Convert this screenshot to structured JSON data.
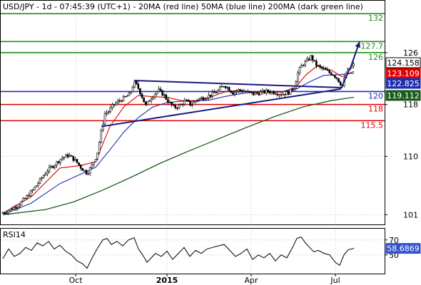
{
  "header": {
    "title": "USD/JPY - 1d - 07:45:39 (UTC+1) - 20MA (red line) 50MA (blue line) 200MA (dark green line)"
  },
  "colors": {
    "background": "#ffffff",
    "grid": "#c8c8c8",
    "candle": "#000000",
    "ma20": "#e00000",
    "ma50": "#1f2fb0",
    "ma200": "#1a5c1a",
    "level_green": "#1f8f1f",
    "level_red": "#e00000",
    "level_blue": "#1f2fb0",
    "trendline": "#1a1a80",
    "price_last": "#000000",
    "rsi_line": "#000000",
    "rsi_badge": "#3355cc"
  },
  "chart_data": [
    {
      "type": "candlestick",
      "title": "USD/JPY - 1d - 07:45:39 (UTC+1) - 20MA (red line) 50MA (blue line) 200MA (dark green line)",
      "y_ticks": [
        101,
        110,
        118,
        126
      ],
      "ylim": [
        99.5,
        134
      ],
      "x_ticks": [
        "Oct",
        "2015",
        "Apr",
        "Jul"
      ],
      "levels": [
        {
          "value": 132,
          "label": "132",
          "color": "green"
        },
        {
          "value": 127.7,
          "label": "127.7",
          "color": "green"
        },
        {
          "value": 126,
          "label": "126",
          "color": "green"
        },
        {
          "value": 120,
          "label": "120",
          "color": "blue"
        },
        {
          "value": 118,
          "label": "118",
          "color": "red"
        },
        {
          "value": 115.5,
          "label": "115.5",
          "color": "red"
        }
      ],
      "price_badges": [
        {
          "value": 124.158,
          "label": "124.158",
          "kind": "last"
        },
        {
          "value": 123.109,
          "label": "123.109",
          "kind": "ma20"
        },
        {
          "value": 122.825,
          "label": "122.825",
          "kind": "ma50"
        },
        {
          "value": 119.112,
          "label": "119.112",
          "kind": "ma200"
        }
      ],
      "close_points": [
        [
          0,
          101.3
        ],
        [
          12,
          101.9
        ],
        [
          22,
          102.5
        ],
        [
          32,
          103.6
        ],
        [
          42,
          104.8
        ],
        [
          52,
          106.3
        ],
        [
          62,
          107.8
        ],
        [
          72,
          108.7
        ],
        [
          82,
          109.7
        ],
        [
          92,
          110.2
        ],
        [
          102,
          109.3
        ],
        [
          110,
          108.2
        ],
        [
          118,
          107.4
        ],
        [
          124,
          108.4
        ],
        [
          132,
          110.3
        ],
        [
          138,
          113.9
        ],
        [
          143,
          116.6
        ],
        [
          148,
          116.9
        ],
        [
          154,
          117.8
        ],
        [
          162,
          118.5
        ],
        [
          170,
          119.0
        ],
        [
          178,
          119.6
        ],
        [
          184,
          121.4
        ],
        [
          189,
          120.7
        ],
        [
          194,
          119.5
        ],
        [
          200,
          117.8
        ],
        [
          206,
          118.8
        ],
        [
          212,
          119.6
        ],
        [
          218,
          120.2
        ],
        [
          226,
          119.4
        ],
        [
          232,
          118.4
        ],
        [
          240,
          117.5
        ],
        [
          248,
          117.8
        ],
        [
          256,
          118.6
        ],
        [
          264,
          117.9
        ],
        [
          272,
          118.8
        ],
        [
          280,
          119.0
        ],
        [
          290,
          119.4
        ],
        [
          300,
          120.0
        ],
        [
          310,
          121.0
        ],
        [
          316,
          120.5
        ],
        [
          322,
          119.8
        ],
        [
          330,
          120.2
        ],
        [
          340,
          120.0
        ],
        [
          350,
          119.6
        ],
        [
          360,
          119.8
        ],
        [
          370,
          120.0
        ],
        [
          380,
          119.9
        ],
        [
          390,
          119.6
        ],
        [
          400,
          119.8
        ],
        [
          408,
          120.6
        ],
        [
          414,
          123.1
        ],
        [
          420,
          124.2
        ],
        [
          426,
          124.7
        ],
        [
          432,
          125.4
        ],
        [
          438,
          124.2
        ],
        [
          444,
          123.7
        ],
        [
          450,
          123.4
        ],
        [
          456,
          123.0
        ],
        [
          462,
          122.7
        ],
        [
          468,
          122.1
        ],
        [
          472,
          121.4
        ],
        [
          476,
          120.8
        ],
        [
          480,
          122.6
        ],
        [
          486,
          123.6
        ],
        [
          492,
          124.158
        ]
      ],
      "ma20_points": [
        [
          0,
          101.2
        ],
        [
          40,
          103.8
        ],
        [
          80,
          108.2
        ],
        [
          110,
          108.6
        ],
        [
          130,
          109.2
        ],
        [
          150,
          114.6
        ],
        [
          170,
          117.7
        ],
        [
          190,
          119.4
        ],
        [
          210,
          119.2
        ],
        [
          230,
          119.1
        ],
        [
          250,
          118.6
        ],
        [
          270,
          118.6
        ],
        [
          290,
          119.1
        ],
        [
          310,
          119.9
        ],
        [
          330,
          120.2
        ],
        [
          350,
          119.9
        ],
        [
          370,
          119.9
        ],
        [
          390,
          119.9
        ],
        [
          410,
          120.6
        ],
        [
          425,
          122.6
        ],
        [
          440,
          123.9
        ],
        [
          460,
          123.3
        ],
        [
          475,
          122.3
        ],
        [
          492,
          123.109
        ]
      ],
      "ma50_points": [
        [
          0,
          101.0
        ],
        [
          40,
          102.8
        ],
        [
          80,
          105.8
        ],
        [
          110,
          107.3
        ],
        [
          130,
          108.3
        ],
        [
          150,
          111.0
        ],
        [
          170,
          113.8
        ],
        [
          190,
          116.0
        ],
        [
          210,
          117.6
        ],
        [
          230,
          118.3
        ],
        [
          250,
          118.5
        ],
        [
          270,
          118.5
        ],
        [
          290,
          118.7
        ],
        [
          310,
          119.2
        ],
        [
          330,
          119.6
        ],
        [
          350,
          119.9
        ],
        [
          370,
          120.0
        ],
        [
          390,
          120.0
        ],
        [
          410,
          120.3
        ],
        [
          430,
          121.5
        ],
        [
          450,
          122.5
        ],
        [
          470,
          122.6
        ],
        [
          492,
          122.825
        ]
      ],
      "ma200_points": [
        [
          0,
          101.0
        ],
        [
          60,
          101.8
        ],
        [
          100,
          103.0
        ],
        [
          140,
          104.8
        ],
        [
          180,
          106.8
        ],
        [
          220,
          108.9
        ],
        [
          260,
          110.8
        ],
        [
          300,
          112.6
        ],
        [
          340,
          114.4
        ],
        [
          380,
          116.1
        ],
        [
          420,
          117.6
        ],
        [
          460,
          118.6
        ],
        [
          492,
          119.112
        ]
      ],
      "trendlines": [
        {
          "from": [
            138,
            114.6
          ],
          "to": [
            474,
            120.4
          ]
        },
        {
          "from": [
            184,
            121.7
          ],
          "to": [
            474,
            120.6
          ]
        },
        {
          "from": [
            474,
            120.5
          ],
          "to": [
            486,
            123.5
          ]
        }
      ],
      "projection_arrow": {
        "from": [
          486,
          123.3
        ],
        "to": [
          500,
          127.7
        ]
      }
    },
    {
      "type": "line",
      "title": "RSI14",
      "y_ticks": [
        50,
        70
      ],
      "ylim": [
        25,
        85
      ],
      "last_value": 58.6869,
      "last_label": "58.6869",
      "points": [
        [
          0,
          45
        ],
        [
          8,
          58
        ],
        [
          16,
          48
        ],
        [
          24,
          52
        ],
        [
          32,
          60
        ],
        [
          40,
          56
        ],
        [
          48,
          66
        ],
        [
          56,
          62
        ],
        [
          64,
          68
        ],
        [
          72,
          58
        ],
        [
          80,
          63
        ],
        [
          88,
          55
        ],
        [
          96,
          50
        ],
        [
          104,
          42
        ],
        [
          112,
          38
        ],
        [
          118,
          32
        ],
        [
          124,
          44
        ],
        [
          132,
          58
        ],
        [
          140,
          70
        ],
        [
          146,
          72
        ],
        [
          152,
          64
        ],
        [
          160,
          68
        ],
        [
          168,
          62
        ],
        [
          176,
          70
        ],
        [
          184,
          73
        ],
        [
          190,
          58
        ],
        [
          196,
          50
        ],
        [
          202,
          40
        ],
        [
          208,
          46
        ],
        [
          214,
          52
        ],
        [
          222,
          48
        ],
        [
          230,
          55
        ],
        [
          238,
          44
        ],
        [
          246,
          52
        ],
        [
          254,
          60
        ],
        [
          262,
          48
        ],
        [
          270,
          56
        ],
        [
          278,
          52
        ],
        [
          286,
          58
        ],
        [
          294,
          60
        ],
        [
          302,
          62
        ],
        [
          310,
          64
        ],
        [
          318,
          56
        ],
        [
          326,
          48
        ],
        [
          334,
          52
        ],
        [
          342,
          58
        ],
        [
          350,
          44
        ],
        [
          358,
          50
        ],
        [
          366,
          46
        ],
        [
          374,
          52
        ],
        [
          382,
          42
        ],
        [
          390,
          50
        ],
        [
          398,
          46
        ],
        [
          406,
          60
        ],
        [
          412,
          72
        ],
        [
          418,
          74
        ],
        [
          424,
          66
        ],
        [
          430,
          60
        ],
        [
          436,
          54
        ],
        [
          442,
          56
        ],
        [
          450,
          52
        ],
        [
          458,
          50
        ],
        [
          466,
          40
        ],
        [
          472,
          36
        ],
        [
          478,
          50
        ],
        [
          484,
          57
        ],
        [
          492,
          58.6869
        ]
      ]
    }
  ]
}
